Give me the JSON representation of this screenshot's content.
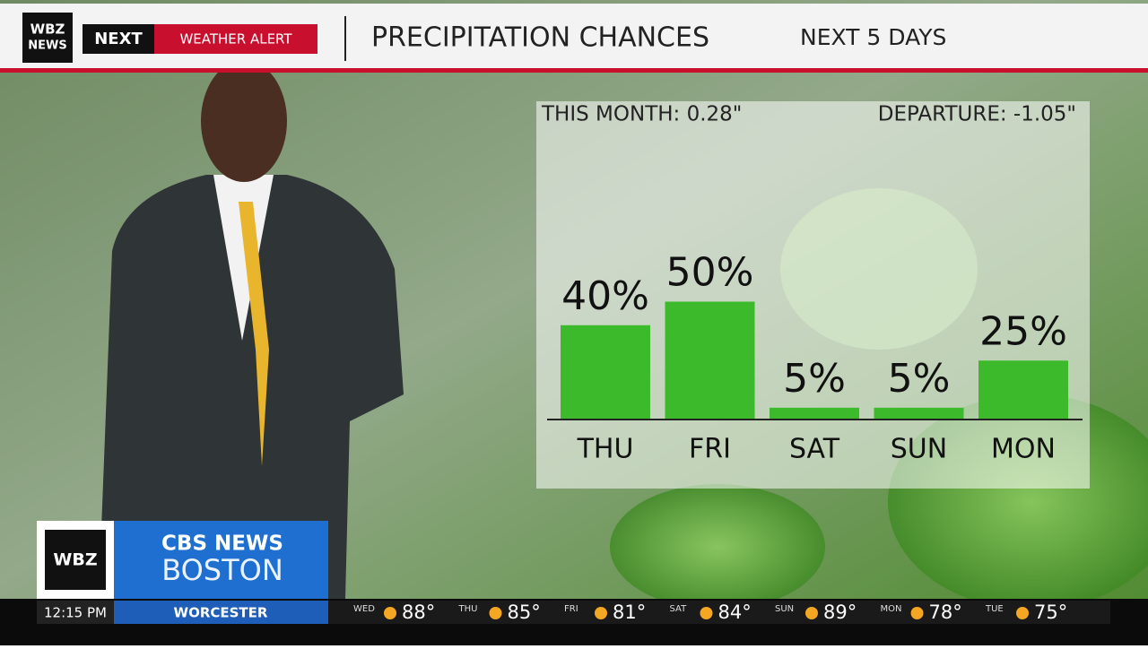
{
  "header": {
    "logo": [
      "WBZ",
      "NEWS"
    ],
    "brand": "NEXT",
    "alert": "WEATHER ALERT"
  },
  "chart_data": {
    "type": "bar",
    "title": "PRECIPITATION CHANCES",
    "subtitle": "NEXT 5 DAYS",
    "annotations": [
      "THIS MONTH:  0.28\"",
      "DEPARTURE:  -1.05\""
    ],
    "categories": [
      "THU",
      "FRI",
      "SAT",
      "SUN",
      "MON"
    ],
    "values": [
      40,
      50,
      5,
      5,
      25
    ],
    "value_labels": [
      "40%",
      "50%",
      "5%",
      "5%",
      "25%"
    ],
    "color": "#3cba2c"
  },
  "lower_third": {
    "station": "WBZ",
    "network": "CBS NEWS",
    "city": "BOSTON",
    "time": "12:15 PM",
    "location": "WORCESTER"
  },
  "ticker": [
    {
      "day": "WED",
      "temp": "88°"
    },
    {
      "day": "THU",
      "temp": "85°"
    },
    {
      "day": "FRI",
      "temp": "81°"
    },
    {
      "day": "SAT",
      "temp": "84°"
    },
    {
      "day": "SUN",
      "temp": "89°"
    },
    {
      "day": "MON",
      "temp": "78°"
    },
    {
      "day": "TUE",
      "temp": "75°"
    }
  ]
}
